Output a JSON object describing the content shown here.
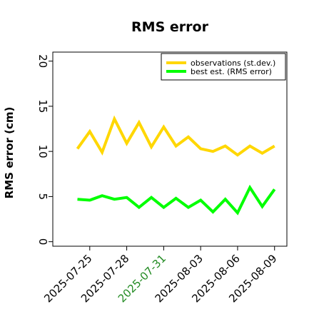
{
  "chart_data": {
    "type": "line",
    "title": "RMS error",
    "xlabel": "",
    "ylabel": "RMS error (cm)",
    "ylim": [
      -0.5,
      21
    ],
    "xlim": [
      "2025-07-22",
      "2025-08-10"
    ],
    "yticks": [
      0,
      5,
      10,
      15,
      20
    ],
    "xticks": [
      "2025-07-25",
      "2025-07-28",
      "2025-07-31",
      "2025-08-03",
      "2025-08-06",
      "2025-08-09"
    ],
    "highlighted_tick": "2025-07-31",
    "highlight_color": "#228b22",
    "grid": false,
    "legend_position": "upper right",
    "x": [
      "2025-07-24",
      "2025-07-25",
      "2025-07-26",
      "2025-07-27",
      "2025-07-28",
      "2025-07-29",
      "2025-07-30",
      "2025-07-31",
      "2025-08-01",
      "2025-08-02",
      "2025-08-03",
      "2025-08-04",
      "2025-08-05",
      "2025-08-06",
      "2025-08-07",
      "2025-08-08",
      "2025-08-09"
    ],
    "series": [
      {
        "name": "observations (st.dev.)",
        "color": "#ffd700",
        "values": [
          10.3,
          12.2,
          9.9,
          13.6,
          10.9,
          13.2,
          10.5,
          12.7,
          10.6,
          11.6,
          10.3,
          10.0,
          10.6,
          9.6,
          10.6,
          9.8,
          10.6
        ]
      },
      {
        "name": "best est. (RMS error)",
        "color": "#00ff00",
        "values": [
          4.7,
          4.6,
          5.1,
          4.7,
          4.9,
          3.8,
          4.9,
          3.8,
          4.8,
          3.8,
          4.6,
          3.3,
          4.7,
          3.2,
          6.0,
          3.9,
          5.8
        ]
      }
    ]
  }
}
